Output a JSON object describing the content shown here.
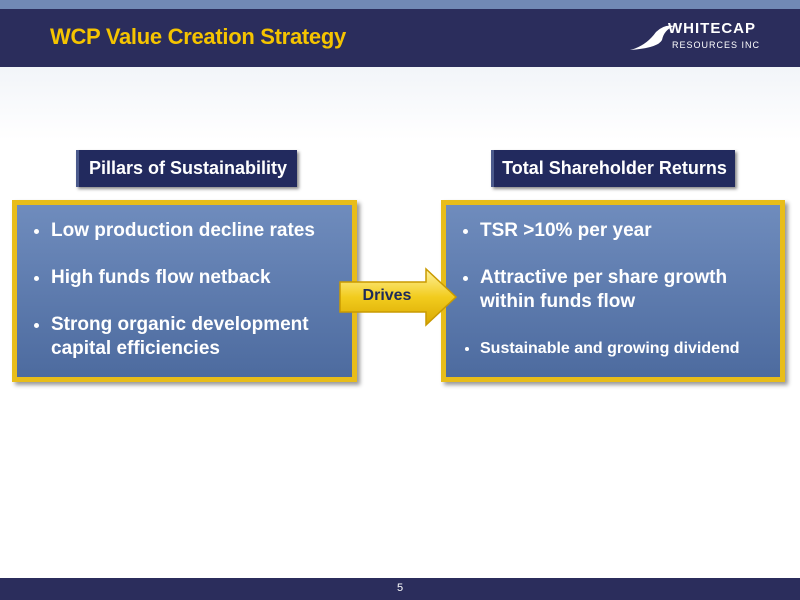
{
  "header": {
    "title": "WCP Value Creation Strategy",
    "logo": {
      "name": "WHITECAP",
      "subtitle": "RESOURCES INC"
    }
  },
  "left": {
    "label": "Pillars of Sustainability",
    "bullets": [
      "Low production decline rates",
      "High funds flow netback",
      "Strong organic development capital efficiencies"
    ]
  },
  "arrow": {
    "label": "Drives"
  },
  "right": {
    "label": "Total Shareholder Returns",
    "bullets": [
      "TSR >10% per year",
      "Attractive per share growth within funds flow",
      "Sustainable and growing dividend"
    ]
  },
  "footer": {
    "page": "5"
  }
}
